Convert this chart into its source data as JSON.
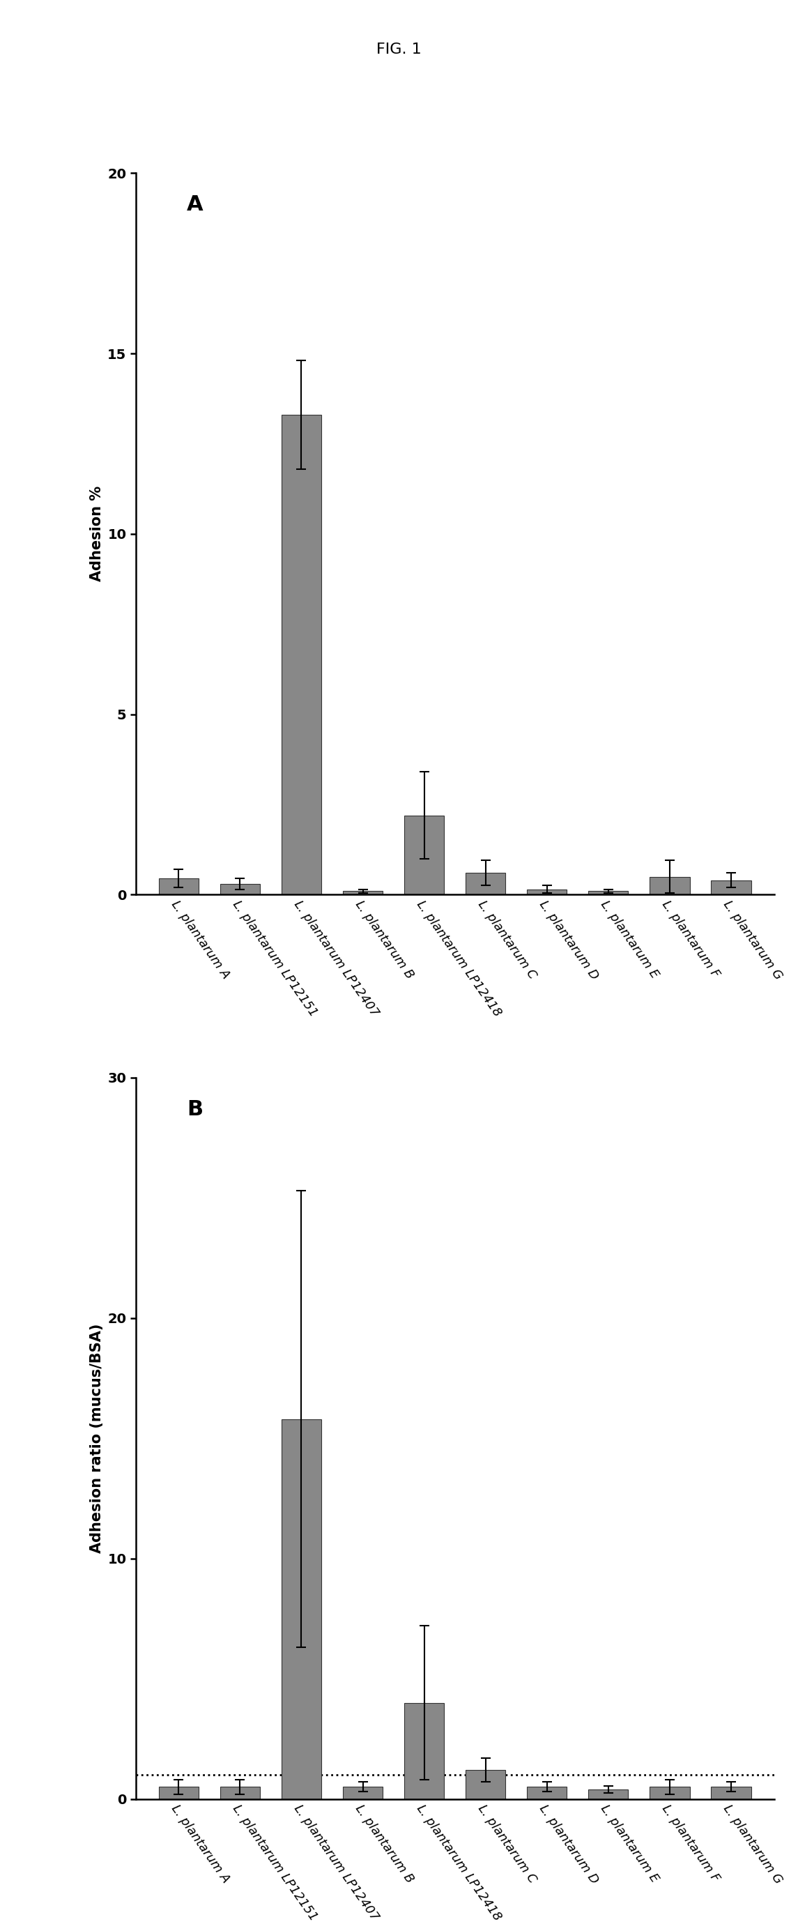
{
  "fig_title": "FIG. 1",
  "panel_A_label": "A",
  "panel_B_label": "B",
  "categories": [
    "L. plantarum A",
    "L. plantarum LP12151",
    "L. plantarum LP12407",
    "L. plantarum B",
    "L. plantarum LP12418",
    "L. plantarum C",
    "L. plantarum D",
    "L. plantarum E",
    "L. plantarum F",
    "L. plantarum G"
  ],
  "A_values": [
    0.45,
    0.3,
    13.3,
    0.1,
    2.2,
    0.6,
    0.15,
    0.1,
    0.5,
    0.4
  ],
  "A_errors": [
    0.25,
    0.15,
    1.5,
    0.05,
    1.2,
    0.35,
    0.1,
    0.05,
    0.45,
    0.2
  ],
  "A_ylabel": "Adhesion %",
  "A_ylim": [
    0,
    20
  ],
  "A_yticks": [
    0,
    5,
    10,
    15,
    20
  ],
  "B_values": [
    0.5,
    0.5,
    15.8,
    0.5,
    4.0,
    1.2,
    0.5,
    0.4,
    0.5,
    0.5
  ],
  "B_errors": [
    0.3,
    0.3,
    9.5,
    0.2,
    3.2,
    0.5,
    0.2,
    0.15,
    0.3,
    0.2
  ],
  "B_ylabel": "Adhesion ratio (mucus/BSA)",
  "B_ylim": [
    0,
    30
  ],
  "B_yticks": [
    0,
    10,
    20,
    30
  ],
  "B_hline": 1.0,
  "bar_color": "#888888",
  "bar_edgecolor": "#333333",
  "background_color": "#ffffff",
  "fig_title_fontsize": 16,
  "panel_label_fontsize": 22,
  "axis_label_fontsize": 15,
  "tick_fontsize": 14,
  "xtick_fontsize": 13,
  "xtick_rotation": -55
}
